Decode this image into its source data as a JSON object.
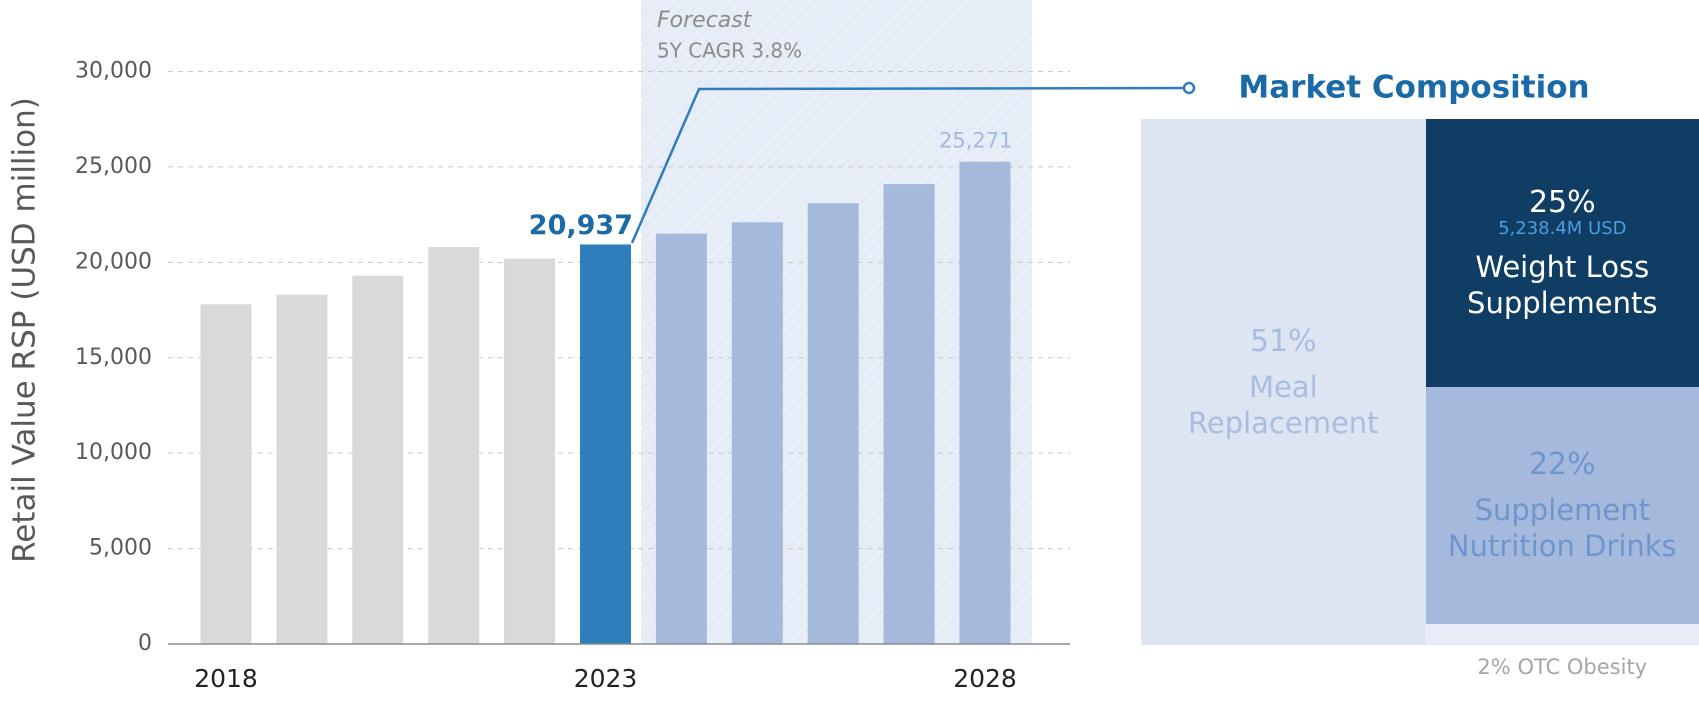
{
  "chart_data": [
    {
      "type": "bar",
      "y_label": "Retail Value RSP (USD million)",
      "annotation_title": "Forecast",
      "annotation_text": "5Y CAGR 3.8%",
      "categories": [
        "2018",
        null,
        null,
        null,
        null,
        "2023",
        null,
        null,
        null,
        null,
        "2028"
      ],
      "values": [
        17800,
        18300,
        19300,
        20800,
        20200,
        20937,
        21500,
        22100,
        23100,
        24100,
        25271
      ],
      "value_labels": [
        null,
        null,
        null,
        null,
        null,
        "20,937",
        null,
        null,
        null,
        null,
        "25,271"
      ],
      "colors": [
        "#d9d9d9",
        "#d9d9d9",
        "#d9d9d9",
        "#d9d9d9",
        "#d9d9d9",
        "#2f7ebc",
        "#a5b9dd",
        "#a5b9dd",
        "#a5b9dd",
        "#a5b9dd",
        "#a5b9dd"
      ],
      "ylim": [
        0,
        30000
      ],
      "yticks": [
        0,
        {
          "value": 5000,
          "label": "5,000"
        },
        {
          "value": 10000,
          "label": "10,000"
        },
        {
          "value": 15000,
          "label": "15,000"
        },
        {
          "value": 20000,
          "label": "20,000"
        },
        {
          "value": 25000,
          "label": "25,000"
        },
        {
          "value": 30000,
          "label": "30,000"
        }
      ],
      "grid": true
    },
    {
      "type": "treemap",
      "title": "Market Composition",
      "categories": [
        "Meal Replacement",
        "Weight Loss Supplements",
        "Supplement Nutrition Drinks",
        "OTC Obesity"
      ],
      "values": [
        51,
        25,
        22,
        2
      ],
      "value_labels": [
        "51%",
        "25%",
        "22%",
        "2%"
      ],
      "amounts": [
        null,
        5238.4,
        null,
        null
      ],
      "amount_labels": [
        null,
        "5,238.4M USD",
        null,
        null
      ],
      "colors": [
        "#dde4f2",
        "#0f3d63",
        "#a5b9dd",
        "#e8ecf6"
      ],
      "text_colors": [
        "#a9bde0",
        "#ffffff",
        "#6f95cf",
        "#a6a6a6"
      ]
    }
  ]
}
